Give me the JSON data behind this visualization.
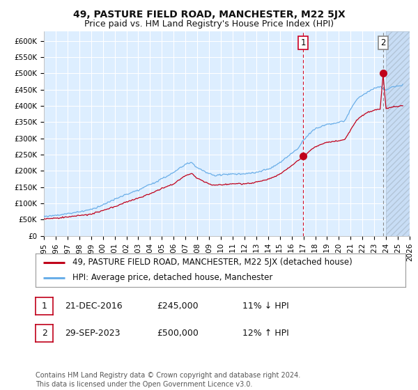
{
  "title": "49, PASTURE FIELD ROAD, MANCHESTER, M22 5JX",
  "subtitle": "Price paid vs. HM Land Registry's House Price Index (HPI)",
  "ylabel_ticks": [
    "£0",
    "£50K",
    "£100K",
    "£150K",
    "£200K",
    "£250K",
    "£300K",
    "£350K",
    "£400K",
    "£450K",
    "£500K",
    "£550K",
    "£600K"
  ],
  "ytick_values": [
    0,
    50000,
    100000,
    150000,
    200000,
    250000,
    300000,
    350000,
    400000,
    450000,
    500000,
    550000,
    600000
  ],
  "ylim": [
    0,
    630000
  ],
  "xlim_start": 1995.0,
  "xlim_end": 2026.0,
  "x_tick_years": [
    1995,
    1996,
    1997,
    1998,
    1999,
    2000,
    2001,
    2002,
    2003,
    2004,
    2005,
    2006,
    2007,
    2008,
    2009,
    2010,
    2011,
    2012,
    2013,
    2014,
    2015,
    2016,
    2017,
    2018,
    2019,
    2020,
    2021,
    2022,
    2023,
    2024,
    2025,
    2026
  ],
  "legend_line1": "49, PASTURE FIELD ROAD, MANCHESTER, M22 5JX (detached house)",
  "legend_line2": "HPI: Average price, detached house, Manchester",
  "purchase1_label": "1",
  "purchase1_date": "21-DEC-2016",
  "purchase1_price": 245000,
  "purchase1_year": 2016.97,
  "purchase1_text": "£245,000",
  "purchase1_pct": "11% ↓ HPI",
  "purchase2_label": "2",
  "purchase2_date": "29-SEP-2023",
  "purchase2_price": 500000,
  "purchase2_year": 2023.75,
  "purchase2_text": "£500,000",
  "purchase2_pct": "12% ↑ HPI",
  "footer": "Contains HM Land Registry data © Crown copyright and database right 2024.\nThis data is licensed under the Open Government Licence v3.0.",
  "line_color_red": "#c0001a",
  "line_color_blue": "#6aaee8",
  "plot_bg_color": "#ddeeff",
  "hatch_bg_color": "#c8ddf5",
  "grid_color": "#ffffff",
  "dashed_line_color1": "#cc0022",
  "dashed_line_color2": "#888888",
  "title_fontsize": 10,
  "subtitle_fontsize": 9,
  "tick_fontsize": 7.5,
  "legend_fontsize": 8.5,
  "annotation_fontsize": 9,
  "footer_fontsize": 7
}
